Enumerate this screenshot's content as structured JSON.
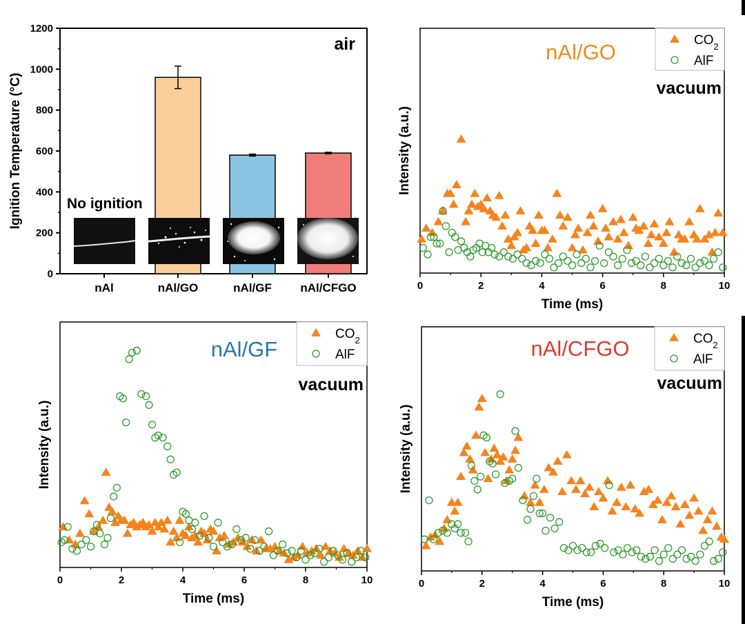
{
  "colors": {
    "co2": "#f5841f",
    "alf": "#2e9a2e",
    "nal_go_label": "#f08a1e",
    "nal_gf_label": "#2878a6",
    "nal_cfgo_label": "#dc3a32",
    "bar_go": "#fbcf9a",
    "bar_gf": "#8cc5e3",
    "bar_cfgo": "#f07d7a"
  },
  "chart_data": [
    {
      "type": "bar",
      "condition": "air",
      "ylabel": "Ignition Temperature (°C)",
      "ylim": [
        0,
        1200
      ],
      "yticks": [
        "0",
        "200",
        "400",
        "600",
        "800",
        "1000",
        "1200"
      ],
      "categories": [
        "nAl",
        "nAl/GO",
        "nAl/GF",
        "nAl/CFGO"
      ],
      "values": [
        null,
        960,
        580,
        590
      ],
      "errors": [
        null,
        55,
        5,
        4
      ],
      "annotation": "No ignition",
      "inset_images": [
        "nAl",
        "nAl/GO",
        "nAl/GF",
        "nAl/CFGO"
      ]
    },
    {
      "type": "scatter",
      "sample": "nAl/GO",
      "condition": "vacuum",
      "xlabel": "Time (ms)",
      "ylabel": "Intensity (a.u.)",
      "xlim": [
        0,
        10
      ],
      "ylim": [
        0,
        100
      ],
      "xticks": [
        "0",
        "2",
        "4",
        "6",
        "8",
        "10"
      ],
      "legend": {
        "co2_base": "CO",
        "co2_sub": "2",
        "alf": "AlF"
      },
      "series": [
        {
          "name": "CO2",
          "x": [
            0.05,
            0.2,
            0.4,
            0.6,
            0.75,
            0.9,
            1.0,
            1.1,
            1.2,
            1.35,
            1.5,
            1.6,
            1.7,
            1.8,
            1.9,
            2.0,
            2.1,
            2.2,
            2.3,
            2.4,
            2.5,
            2.6,
            2.7,
            2.8,
            2.9,
            3.0,
            3.1,
            3.2,
            3.3,
            3.4,
            3.5,
            3.6,
            3.7,
            3.8,
            3.9,
            4.0,
            4.1,
            4.2,
            4.35,
            4.5,
            4.6,
            4.7,
            4.85,
            5.0,
            5.1,
            5.2,
            5.35,
            5.5,
            5.6,
            5.7,
            5.85,
            6.0,
            6.1,
            6.2,
            6.35,
            6.5,
            6.6,
            6.7,
            6.85,
            7.0,
            7.1,
            7.2,
            7.35,
            7.5,
            7.6,
            7.7,
            7.85,
            8.0,
            8.1,
            8.2,
            8.35,
            8.5,
            8.6,
            8.7,
            8.85,
            9.0,
            9.1,
            9.2,
            9.35,
            9.5,
            9.6,
            9.7,
            9.8,
            9.95
          ],
          "y": [
            14,
            19,
            17,
            22,
            27,
            35,
            35,
            30,
            39,
            60,
            22,
            27,
            30,
            35,
            29,
            30,
            28,
            33,
            27,
            25,
            24,
            34,
            20,
            25,
            14,
            11,
            15,
            17,
            27,
            9,
            10,
            20,
            18,
            12,
            25,
            18,
            18,
            10,
            14,
            35,
            25,
            20,
            24,
            10,
            16,
            19,
            9,
            17,
            25,
            20,
            13,
            28,
            19,
            15,
            22,
            14,
            23,
            17,
            11,
            24,
            19,
            18,
            20,
            12,
            16,
            21,
            15,
            12,
            17,
            22,
            8,
            16,
            14,
            14,
            22,
            16,
            14,
            28,
            14,
            16,
            8,
            17,
            26,
            17
          ]
        },
        {
          "name": "AlF",
          "x": [
            0.1,
            0.25,
            0.35,
            0.45,
            0.55,
            0.65,
            0.75,
            0.85,
            0.95,
            1.05,
            1.15,
            1.25,
            1.35,
            1.45,
            1.55,
            1.65,
            1.75,
            1.85,
            1.95,
            2.05,
            2.15,
            2.25,
            2.35,
            2.45,
            2.6,
            2.75,
            2.9,
            3.05,
            3.2,
            3.35,
            3.5,
            3.65,
            3.8,
            3.95,
            4.1,
            4.25,
            4.4,
            4.55,
            4.7,
            4.85,
            5.0,
            5.15,
            5.3,
            5.45,
            5.6,
            5.75,
            5.9,
            6.05,
            6.2,
            6.35,
            6.5,
            6.65,
            6.8,
            6.95,
            7.1,
            7.25,
            7.4,
            7.55,
            7.7,
            7.85,
            8.0,
            8.15,
            8.3,
            8.45,
            8.6,
            8.75,
            8.9,
            9.05,
            9.2,
            9.35,
            9.5,
            9.65,
            9.8,
            9.95
          ],
          "y": [
            10,
            7,
            15,
            15,
            12,
            12,
            27,
            20,
            8,
            17,
            15,
            9,
            13,
            10,
            8,
            6,
            9,
            10,
            12,
            8,
            11,
            8,
            10,
            7,
            6,
            8,
            6,
            5,
            7,
            5,
            3,
            2,
            4,
            3,
            7,
            5,
            1,
            3,
            6,
            4,
            2,
            7,
            3,
            5,
            1,
            4,
            11,
            3,
            8,
            6,
            2,
            5,
            9,
            3,
            4,
            2,
            6,
            1,
            3,
            5,
            2,
            4,
            1,
            6,
            3,
            2,
            5,
            1,
            3,
            4,
            2,
            5,
            8,
            1
          ]
        }
      ]
    },
    {
      "type": "scatter",
      "sample": "nAl/GF",
      "condition": "vacuum",
      "xlabel": "Time (ms)",
      "ylabel": "Intensity (a.u.)",
      "xlim": [
        0,
        10
      ],
      "ylim": [
        0,
        100
      ],
      "xticks": [
        "0",
        "2",
        "4",
        "6",
        "8",
        "10"
      ],
      "legend": {
        "co2_base": "CO",
        "co2_sub": "2",
        "alf": "AlF"
      },
      "series": [
        {
          "name": "CO2",
          "x": [
            0.1,
            0.3,
            0.5,
            0.65,
            0.8,
            0.95,
            1.1,
            1.25,
            1.4,
            1.5,
            1.6,
            1.7,
            1.8,
            1.9,
            2.0,
            2.1,
            2.2,
            2.3,
            2.4,
            2.5,
            2.6,
            2.7,
            2.8,
            2.9,
            3.0,
            3.1,
            3.2,
            3.3,
            3.4,
            3.5,
            3.6,
            3.7,
            3.8,
            3.9,
            4.0,
            4.1,
            4.2,
            4.3,
            4.4,
            4.5,
            4.6,
            4.7,
            4.8,
            4.9,
            5.0,
            5.1,
            5.2,
            5.35,
            5.5,
            5.65,
            5.8,
            5.95,
            6.1,
            6.25,
            6.4,
            6.55,
            6.7,
            6.85,
            7.0,
            7.15,
            7.3,
            7.45,
            7.6,
            7.75,
            7.9,
            8.05,
            8.2,
            8.35,
            8.5,
            8.65,
            8.8,
            8.95,
            9.1,
            9.25,
            9.4,
            9.55,
            9.7,
            9.85,
            10.0
          ],
          "y": [
            17,
            11,
            9,
            14,
            29,
            23,
            15,
            17,
            20,
            42,
            26,
            24,
            19,
            22,
            20,
            20,
            14,
            18,
            19,
            17,
            18,
            19,
            17,
            18,
            15,
            19,
            17,
            19,
            16,
            20,
            10,
            15,
            12,
            20,
            14,
            13,
            17,
            12,
            13,
            10,
            15,
            14,
            11,
            16,
            15,
            6,
            12,
            13,
            9,
            10,
            12,
            10,
            8,
            11,
            6,
            11,
            7,
            7,
            8,
            6,
            5,
            2,
            3,
            4,
            8,
            5,
            6,
            7,
            4,
            8,
            6,
            5,
            3,
            7,
            5,
            4,
            6,
            3,
            7
          ]
        },
        {
          "name": "AlF",
          "x": [
            0.05,
            0.15,
            0.25,
            0.4,
            0.55,
            0.7,
            0.85,
            1.0,
            1.1,
            1.2,
            1.3,
            1.45,
            1.55,
            1.65,
            1.75,
            1.85,
            1.95,
            2.05,
            2.15,
            2.25,
            2.35,
            2.5,
            2.65,
            2.8,
            2.9,
            3.0,
            3.1,
            3.2,
            3.35,
            3.5,
            3.6,
            3.7,
            3.8,
            3.9,
            4.0,
            4.1,
            4.2,
            4.3,
            4.4,
            4.55,
            4.7,
            4.85,
            5.0,
            5.15,
            5.3,
            5.45,
            5.6,
            5.75,
            5.9,
            6.05,
            6.2,
            6.35,
            6.5,
            6.65,
            6.8,
            6.95,
            7.1,
            7.25,
            7.4,
            7.55,
            7.7,
            7.85,
            8.0,
            8.15,
            8.3,
            8.45,
            8.6,
            8.75,
            8.9,
            9.05,
            9.2,
            9.35,
            9.5,
            9.65,
            9.8,
            9.95
          ],
          "y": [
            10,
            11,
            17,
            7,
            6,
            9,
            11,
            8,
            15,
            18,
            14,
            9,
            12,
            21,
            31,
            35,
            77,
            76,
            65,
            94,
            97,
            98,
            78,
            77,
            73,
            64,
            58,
            59,
            58,
            54,
            48,
            41,
            42,
            10,
            24,
            23,
            20,
            16,
            19,
            13,
            22,
            12,
            8,
            19,
            10,
            8,
            9,
            16,
            11,
            12,
            7,
            11,
            6,
            8,
            15,
            4,
            6,
            9,
            5,
            6,
            3,
            6,
            2,
            4,
            5,
            7,
            1,
            3,
            6,
            4,
            2,
            5,
            1,
            3,
            6,
            3
          ]
        }
      ]
    },
    {
      "type": "scatter",
      "sample": "nAl/CFGO",
      "condition": "vacuum",
      "xlabel": "Time (ms)",
      "ylabel": "Intensity (a.u.)",
      "xlim": [
        0,
        10
      ],
      "ylim": [
        0,
        100
      ],
      "xticks": [
        "0",
        "2",
        "4",
        "6",
        "8",
        "10"
      ],
      "legend": {
        "co2_base": "CO",
        "co2_sub": "2",
        "alf": "AlF"
      },
      "series": [
        {
          "name": "CO2",
          "x": [
            0.15,
            0.3,
            0.45,
            0.6,
            0.75,
            0.85,
            1.0,
            1.1,
            1.2,
            1.3,
            1.4,
            1.5,
            1.6,
            1.7,
            1.8,
            1.9,
            2.0,
            2.1,
            2.2,
            2.3,
            2.4,
            2.5,
            2.6,
            2.7,
            2.8,
            2.9,
            3.0,
            3.1,
            3.2,
            3.4,
            3.6,
            3.75,
            3.9,
            4.05,
            4.2,
            4.35,
            4.5,
            4.65,
            4.8,
            4.95,
            5.1,
            5.25,
            5.4,
            5.55,
            5.7,
            5.85,
            6.0,
            6.15,
            6.3,
            6.45,
            6.6,
            6.75,
            6.9,
            7.05,
            7.2,
            7.35,
            7.5,
            7.65,
            7.8,
            7.95,
            8.1,
            8.25,
            8.4,
            8.55,
            8.7,
            8.85,
            9.0,
            9.15,
            9.3,
            9.45,
            9.6,
            9.75,
            9.9,
            10.0
          ],
          "y": [
            10,
            14,
            15,
            12,
            18,
            22,
            30,
            26,
            30,
            42,
            53,
            56,
            50,
            45,
            61,
            74,
            78,
            53,
            41,
            50,
            55,
            52,
            49,
            51,
            40,
            45,
            50,
            54,
            60,
            33,
            30,
            38,
            30,
            36,
            46,
            44,
            49,
            35,
            52,
            40,
            36,
            40,
            34,
            37,
            28,
            35,
            32,
            40,
            26,
            30,
            37,
            28,
            38,
            27,
            25,
            35,
            36,
            29,
            31,
            22,
            30,
            33,
            28,
            20,
            29,
            24,
            32,
            26,
            17,
            22,
            26,
            19,
            14,
            13
          ]
        },
        {
          "name": "AlF",
          "x": [
            0.1,
            0.25,
            0.4,
            0.55,
            0.7,
            0.85,
            1.0,
            1.1,
            1.2,
            1.3,
            1.45,
            1.55,
            1.65,
            1.75,
            1.85,
            1.95,
            2.05,
            2.15,
            2.25,
            2.35,
            2.45,
            2.6,
            2.75,
            2.9,
            3.0,
            3.1,
            3.2,
            3.35,
            3.5,
            3.6,
            3.7,
            3.8,
            3.9,
            4.0,
            4.1,
            4.25,
            4.4,
            4.55,
            4.7,
            4.85,
            5.0,
            5.15,
            5.3,
            5.45,
            5.6,
            5.75,
            5.9,
            6.05,
            6.2,
            6.35,
            6.5,
            6.65,
            6.8,
            6.95,
            7.1,
            7.25,
            7.4,
            7.55,
            7.7,
            7.85,
            8.0,
            8.15,
            8.3,
            8.45,
            8.6,
            8.75,
            8.9,
            9.05,
            9.2,
            9.35,
            9.5,
            9.65,
            9.8,
            9.95
          ],
          "y": [
            13,
            31,
            13,
            16,
            17,
            16,
            20,
            18,
            20,
            16,
            16,
            12,
            47,
            40,
            36,
            42,
            61,
            60,
            49,
            48,
            43,
            80,
            39,
            40,
            41,
            63,
            46,
            31,
            22,
            27,
            33,
            41,
            25,
            25,
            17,
            23,
            18,
            21,
            9,
            8,
            10,
            8,
            9,
            7,
            7,
            10,
            11,
            9,
            38,
            7,
            8,
            6,
            9,
            7,
            8,
            5,
            4,
            5,
            8,
            3,
            6,
            9,
            4,
            6,
            8,
            4,
            5,
            3,
            6,
            10,
            12,
            3,
            4,
            7
          ]
        }
      ]
    }
  ]
}
